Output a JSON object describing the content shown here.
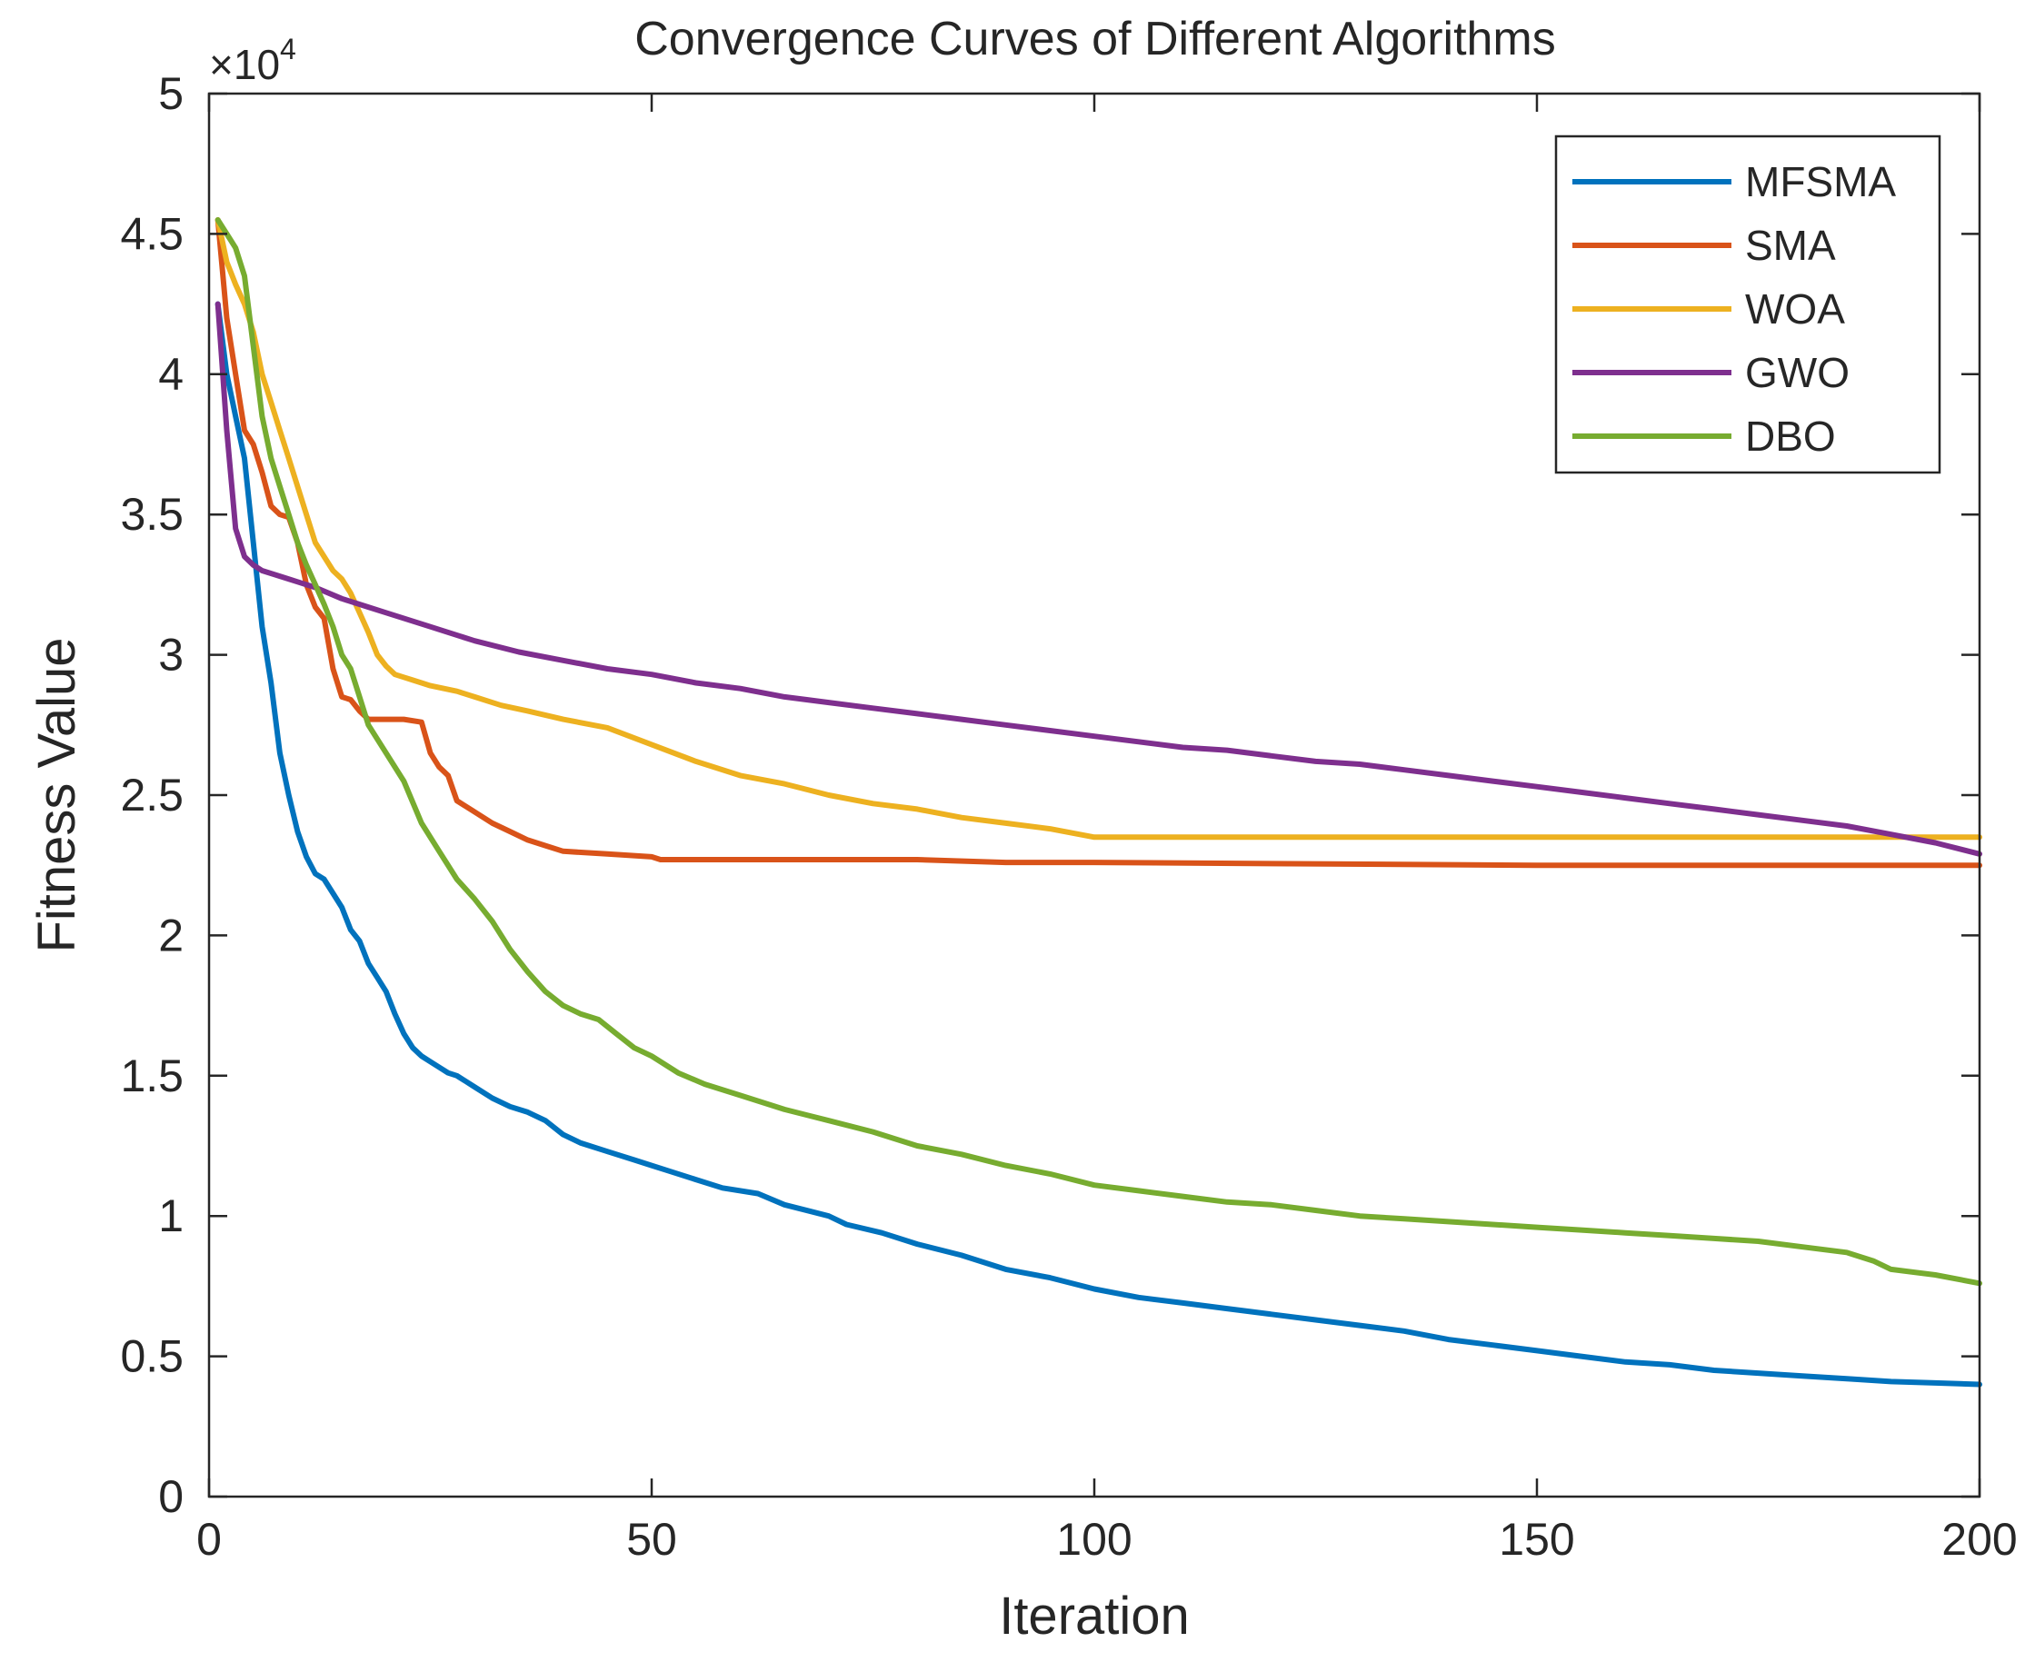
{
  "chart_data": {
    "type": "line",
    "title": "Convergence Curves of Different Algorithms",
    "xlabel": "Iteration",
    "ylabel": "Fitness Value",
    "xlim": [
      0,
      200
    ],
    "ylim": [
      0,
      50000
    ],
    "grid": false,
    "legend_position": "top-right",
    "y_multiplier": {
      "base": "×10",
      "exponent": "4"
    },
    "x_ticks": [
      {
        "value": 0,
        "label": "0"
      },
      {
        "value": 50,
        "label": "50"
      },
      {
        "value": 100,
        "label": "100"
      },
      {
        "value": 150,
        "label": "150"
      },
      {
        "value": 200,
        "label": "200"
      }
    ],
    "y_ticks": [
      {
        "value": 0,
        "label": "0"
      },
      {
        "value": 5000,
        "label": "0.5"
      },
      {
        "value": 10000,
        "label": "1"
      },
      {
        "value": 15000,
        "label": "1.5"
      },
      {
        "value": 20000,
        "label": "2"
      },
      {
        "value": 25000,
        "label": "2.5"
      },
      {
        "value": 30000,
        "label": "3"
      },
      {
        "value": 35000,
        "label": "3.5"
      },
      {
        "value": 40000,
        "label": "4"
      },
      {
        "value": 45000,
        "label": "4.5"
      },
      {
        "value": 50000,
        "label": "5"
      }
    ],
    "series": [
      {
        "name": "MFSMA",
        "color": "#0072BD",
        "points": [
          [
            1,
            42500
          ],
          [
            2,
            40000
          ],
          [
            3,
            38500
          ],
          [
            4,
            37000
          ],
          [
            5,
            34000
          ],
          [
            6,
            31000
          ],
          [
            7,
            29000
          ],
          [
            8,
            26500
          ],
          [
            9,
            25000
          ],
          [
            10,
            23700
          ],
          [
            11,
            22800
          ],
          [
            12,
            22200
          ],
          [
            13,
            22000
          ],
          [
            14,
            21500
          ],
          [
            15,
            21000
          ],
          [
            16,
            20200
          ],
          [
            17,
            19800
          ],
          [
            18,
            19000
          ],
          [
            19,
            18500
          ],
          [
            20,
            18000
          ],
          [
            21,
            17200
          ],
          [
            22,
            16500
          ],
          [
            23,
            16000
          ],
          [
            24,
            15700
          ],
          [
            25,
            15500
          ],
          [
            26,
            15300
          ],
          [
            27,
            15100
          ],
          [
            28,
            15000
          ],
          [
            29,
            14800
          ],
          [
            30,
            14600
          ],
          [
            32,
            14200
          ],
          [
            34,
            13900
          ],
          [
            36,
            13700
          ],
          [
            38,
            13400
          ],
          [
            40,
            12900
          ],
          [
            42,
            12600
          ],
          [
            45,
            12300
          ],
          [
            48,
            12000
          ],
          [
            50,
            11800
          ],
          [
            52,
            11600
          ],
          [
            55,
            11300
          ],
          [
            58,
            11000
          ],
          [
            62,
            10800
          ],
          [
            65,
            10400
          ],
          [
            70,
            10000
          ],
          [
            72,
            9700
          ],
          [
            76,
            9400
          ],
          [
            80,
            9000
          ],
          [
            85,
            8600
          ],
          [
            90,
            8100
          ],
          [
            95,
            7800
          ],
          [
            100,
            7400
          ],
          [
            105,
            7100
          ],
          [
            110,
            6900
          ],
          [
            115,
            6700
          ],
          [
            120,
            6500
          ],
          [
            125,
            6300
          ],
          [
            130,
            6100
          ],
          [
            135,
            5900
          ],
          [
            140,
            5600
          ],
          [
            145,
            5400
          ],
          [
            150,
            5200
          ],
          [
            155,
            5000
          ],
          [
            160,
            4800
          ],
          [
            165,
            4700
          ],
          [
            170,
            4500
          ],
          [
            175,
            4400
          ],
          [
            180,
            4300
          ],
          [
            185,
            4200
          ],
          [
            190,
            4100
          ],
          [
            195,
            4050
          ],
          [
            200,
            4000
          ]
        ]
      },
      {
        "name": "SMA",
        "color": "#D95319",
        "points": [
          [
            1,
            45500
          ],
          [
            2,
            42000
          ],
          [
            3,
            40000
          ],
          [
            4,
            38000
          ],
          [
            5,
            37500
          ],
          [
            6,
            36500
          ],
          [
            7,
            35300
          ],
          [
            8,
            35000
          ],
          [
            9,
            34900
          ],
          [
            10,
            34000
          ],
          [
            11,
            32500
          ],
          [
            12,
            31700
          ],
          [
            13,
            31300
          ],
          [
            14,
            29500
          ],
          [
            15,
            28500
          ],
          [
            16,
            28400
          ],
          [
            17,
            28000
          ],
          [
            18,
            27700
          ],
          [
            20,
            27700
          ],
          [
            22,
            27700
          ],
          [
            24,
            27600
          ],
          [
            25,
            26500
          ],
          [
            26,
            26000
          ],
          [
            27,
            25700
          ],
          [
            28,
            24800
          ],
          [
            29,
            24600
          ],
          [
            30,
            24400
          ],
          [
            32,
            24000
          ],
          [
            34,
            23700
          ],
          [
            36,
            23400
          ],
          [
            38,
            23200
          ],
          [
            40,
            23000
          ],
          [
            45,
            22900
          ],
          [
            50,
            22800
          ],
          [
            51,
            22700
          ],
          [
            60,
            22700
          ],
          [
            80,
            22700
          ],
          [
            90,
            22600
          ],
          [
            100,
            22600
          ],
          [
            150,
            22500
          ],
          [
            200,
            22500
          ]
        ]
      },
      {
        "name": "WOA",
        "color": "#EDB120",
        "points": [
          [
            1,
            45500
          ],
          [
            2,
            44000
          ],
          [
            3,
            43200
          ],
          [
            4,
            42500
          ],
          [
            5,
            41500
          ],
          [
            6,
            40000
          ],
          [
            7,
            39000
          ],
          [
            8,
            38000
          ],
          [
            9,
            37000
          ],
          [
            10,
            36000
          ],
          [
            11,
            35000
          ],
          [
            12,
            34000
          ],
          [
            13,
            33500
          ],
          [
            14,
            33000
          ],
          [
            15,
            32700
          ],
          [
            16,
            32200
          ],
          [
            17,
            31500
          ],
          [
            18,
            30800
          ],
          [
            19,
            30000
          ],
          [
            20,
            29600
          ],
          [
            21,
            29300
          ],
          [
            22,
            29200
          ],
          [
            23,
            29100
          ],
          [
            24,
            29000
          ],
          [
            25,
            28900
          ],
          [
            28,
            28700
          ],
          [
            30,
            28500
          ],
          [
            33,
            28200
          ],
          [
            36,
            28000
          ],
          [
            40,
            27700
          ],
          [
            45,
            27400
          ],
          [
            50,
            26800
          ],
          [
            55,
            26200
          ],
          [
            60,
            25700
          ],
          [
            65,
            25400
          ],
          [
            70,
            25000
          ],
          [
            75,
            24700
          ],
          [
            80,
            24500
          ],
          [
            85,
            24200
          ],
          [
            90,
            24000
          ],
          [
            95,
            23800
          ],
          [
            100,
            23500
          ],
          [
            105,
            23500
          ],
          [
            150,
            23500
          ],
          [
            200,
            23500
          ]
        ]
      },
      {
        "name": "GWO",
        "color": "#7E2F8E",
        "points": [
          [
            1,
            42500
          ],
          [
            2,
            38000
          ],
          [
            3,
            34500
          ],
          [
            4,
            33500
          ],
          [
            5,
            33200
          ],
          [
            6,
            33000
          ],
          [
            8,
            32800
          ],
          [
            10,
            32600
          ],
          [
            12,
            32400
          ],
          [
            15,
            32000
          ],
          [
            18,
            31700
          ],
          [
            20,
            31500
          ],
          [
            25,
            31000
          ],
          [
            30,
            30500
          ],
          [
            35,
            30100
          ],
          [
            40,
            29800
          ],
          [
            45,
            29500
          ],
          [
            50,
            29300
          ],
          [
            55,
            29000
          ],
          [
            60,
            28800
          ],
          [
            65,
            28500
          ],
          [
            70,
            28300
          ],
          [
            75,
            28100
          ],
          [
            80,
            27900
          ],
          [
            85,
            27700
          ],
          [
            90,
            27500
          ],
          [
            95,
            27300
          ],
          [
            100,
            27100
          ],
          [
            105,
            26900
          ],
          [
            110,
            26700
          ],
          [
            115,
            26600
          ],
          [
            120,
            26400
          ],
          [
            125,
            26200
          ],
          [
            130,
            26100
          ],
          [
            135,
            25900
          ],
          [
            140,
            25700
          ],
          [
            145,
            25500
          ],
          [
            150,
            25300
          ],
          [
            155,
            25100
          ],
          [
            160,
            24900
          ],
          [
            165,
            24700
          ],
          [
            170,
            24500
          ],
          [
            175,
            24300
          ],
          [
            180,
            24100
          ],
          [
            185,
            23900
          ],
          [
            190,
            23600
          ],
          [
            195,
            23300
          ],
          [
            200,
            22900
          ]
        ]
      },
      {
        "name": "DBO",
        "color": "#77AC30",
        "points": [
          [
            1,
            45500
          ],
          [
            2,
            45000
          ],
          [
            3,
            44500
          ],
          [
            4,
            43500
          ],
          [
            5,
            41000
          ],
          [
            6,
            38500
          ],
          [
            7,
            37000
          ],
          [
            8,
            36000
          ],
          [
            9,
            35000
          ],
          [
            10,
            34000
          ],
          [
            11,
            33200
          ],
          [
            12,
            32500
          ],
          [
            13,
            31800
          ],
          [
            14,
            31000
          ],
          [
            15,
            30000
          ],
          [
            16,
            29500
          ],
          [
            17,
            28500
          ],
          [
            18,
            27500
          ],
          [
            20,
            26500
          ],
          [
            22,
            25500
          ],
          [
            24,
            24000
          ],
          [
            26,
            23000
          ],
          [
            28,
            22000
          ],
          [
            30,
            21300
          ],
          [
            32,
            20500
          ],
          [
            34,
            19500
          ],
          [
            36,
            18700
          ],
          [
            38,
            18000
          ],
          [
            40,
            17500
          ],
          [
            42,
            17200
          ],
          [
            44,
            17000
          ],
          [
            46,
            16500
          ],
          [
            48,
            16000
          ],
          [
            50,
            15700
          ],
          [
            53,
            15100
          ],
          [
            56,
            14700
          ],
          [
            60,
            14300
          ],
          [
            65,
            13800
          ],
          [
            70,
            13400
          ],
          [
            75,
            13000
          ],
          [
            80,
            12500
          ],
          [
            85,
            12200
          ],
          [
            90,
            11800
          ],
          [
            95,
            11500
          ],
          [
            100,
            11100
          ],
          [
            105,
            10900
          ],
          [
            110,
            10700
          ],
          [
            115,
            10500
          ],
          [
            120,
            10400
          ],
          [
            125,
            10200
          ],
          [
            130,
            10000
          ],
          [
            135,
            9900
          ],
          [
            140,
            9800
          ],
          [
            145,
            9700
          ],
          [
            150,
            9600
          ],
          [
            155,
            9500
          ],
          [
            160,
            9400
          ],
          [
            165,
            9300
          ],
          [
            170,
            9200
          ],
          [
            175,
            9100
          ],
          [
            180,
            8900
          ],
          [
            185,
            8700
          ],
          [
            188,
            8400
          ],
          [
            190,
            8100
          ],
          [
            195,
            7900
          ],
          [
            200,
            7600
          ]
        ]
      }
    ]
  }
}
